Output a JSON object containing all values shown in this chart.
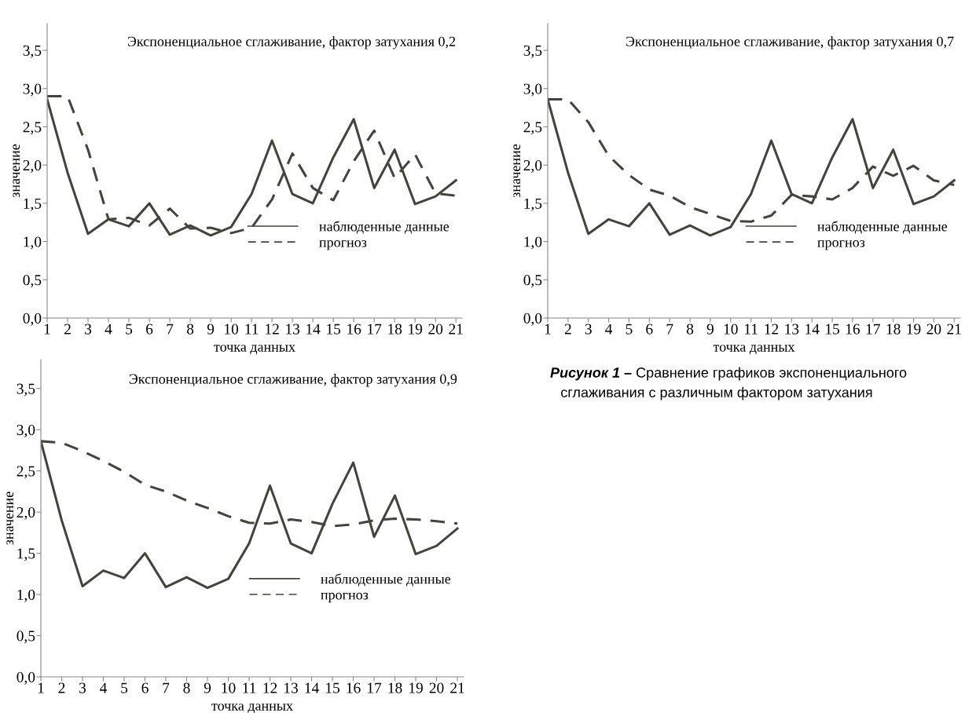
{
  "chart_data": [
    {
      "type": "line",
      "title": "Экспоненциальное сглаживание, фактор затухания 0,2",
      "xlabel": "точка данных",
      "ylabel": "значение",
      "x": [
        1,
        2,
        3,
        4,
        5,
        6,
        7,
        8,
        9,
        10,
        11,
        12,
        13,
        14,
        15,
        16,
        17,
        18,
        19,
        20,
        21
      ],
      "series": [
        {
          "name": "наблюденные данные",
          "color": "#45433b",
          "line_style": "solid",
          "values": [
            2.86,
            1.9,
            1.1,
            1.29,
            1.2,
            1.5,
            1.09,
            1.21,
            1.08,
            1.19,
            1.62,
            2.32,
            1.62,
            1.5,
            2.1,
            2.6,
            1.7,
            2.2,
            1.49,
            1.59,
            1.8
          ]
        },
        {
          "name": "прогноз",
          "color": "#45433b",
          "line_style": "dashed",
          "values": [
            2.9,
            2.9,
            2.2,
            1.29,
            1.31,
            1.21,
            1.43,
            1.17,
            1.18,
            1.11,
            1.18,
            1.55,
            2.15,
            1.7,
            1.54,
            2.05,
            2.45,
            1.83,
            2.14,
            1.63,
            1.6
          ]
        }
      ],
      "xlim": [
        1,
        21.3
      ],
      "xticks": [
        1,
        2,
        3,
        4,
        5,
        6,
        7,
        8,
        9,
        10,
        11,
        12,
        13,
        14,
        15,
        16,
        17,
        18,
        19,
        20,
        21
      ],
      "ylim": [
        0,
        3.85
      ],
      "yticks": [
        {
          "value": 0,
          "label": "0,0"
        },
        {
          "value": 0.5,
          "label": "0,5"
        },
        {
          "value": 1,
          "label": "1,0"
        },
        {
          "value": 1.5,
          "label": "1,5"
        },
        {
          "value": 2,
          "label": "2,0"
        },
        {
          "value": 2.5,
          "label": "2,5"
        },
        {
          "value": 3,
          "label": "3,0"
        },
        {
          "value": 3.5,
          "label": "3,5"
        }
      ],
      "grid": false,
      "legend": "right",
      "marker": "none"
    },
    {
      "type": "line",
      "title": "Экспоненциальное сглаживание, фактор затухания 0,7",
      "xlabel": "точка данных",
      "ylabel": "значение",
      "x": [
        1,
        2,
        3,
        4,
        5,
        6,
        7,
        8,
        9,
        10,
        11,
        12,
        13,
        14,
        15,
        16,
        17,
        18,
        19,
        20,
        21
      ],
      "series": [
        {
          "name": "наблюденные данные",
          "color": "#45433b",
          "line_style": "solid",
          "values": [
            2.86,
            1.9,
            1.1,
            1.29,
            1.2,
            1.5,
            1.09,
            1.21,
            1.08,
            1.19,
            1.62,
            2.32,
            1.62,
            1.5,
            2.1,
            2.6,
            1.7,
            2.2,
            1.49,
            1.59,
            1.8
          ]
        },
        {
          "name": "прогноз",
          "color": "#45433b",
          "line_style": "dashed",
          "values": [
            2.86,
            2.86,
            2.56,
            2.12,
            1.87,
            1.68,
            1.6,
            1.45,
            1.36,
            1.27,
            1.26,
            1.34,
            1.61,
            1.59,
            1.55,
            1.7,
            1.98,
            1.86,
            1.99,
            1.8,
            1.74
          ]
        }
      ],
      "xlim": [
        1,
        21.3
      ],
      "xticks": [
        1,
        2,
        3,
        4,
        5,
        6,
        7,
        8,
        9,
        10,
        11,
        12,
        13,
        14,
        15,
        16,
        17,
        18,
        19,
        20,
        21
      ],
      "ylim": [
        0,
        3.85
      ],
      "yticks": [
        {
          "value": 0,
          "label": "0,0"
        },
        {
          "value": 0.5,
          "label": "0,5"
        },
        {
          "value": 1,
          "label": "1,0"
        },
        {
          "value": 1.5,
          "label": "1,5"
        },
        {
          "value": 2,
          "label": "2,0"
        },
        {
          "value": 2.5,
          "label": "2,5"
        },
        {
          "value": 3,
          "label": "3,0"
        },
        {
          "value": 3.5,
          "label": "3,5"
        }
      ],
      "grid": false,
      "legend": "right",
      "marker": "none"
    },
    {
      "type": "line",
      "title": "Экспоненциальное сглаживание, фактор затухания 0,9",
      "xlabel": "точка данных",
      "ylabel": "значение",
      "x": [
        1,
        2,
        3,
        4,
        5,
        6,
        7,
        8,
        9,
        10,
        11,
        12,
        13,
        14,
        15,
        16,
        17,
        18,
        19,
        20,
        21
      ],
      "series": [
        {
          "name": "наблюденные данные",
          "color": "#45433b",
          "line_style": "solid",
          "values": [
            2.86,
            1.9,
            1.1,
            1.29,
            1.2,
            1.5,
            1.09,
            1.21,
            1.08,
            1.19,
            1.62,
            2.32,
            1.62,
            1.5,
            2.1,
            2.6,
            1.7,
            2.2,
            1.49,
            1.59,
            1.8
          ]
        },
        {
          "name": "прогноз",
          "color": "#45433b",
          "line_style": "dashed",
          "values": [
            2.86,
            2.84,
            2.74,
            2.62,
            2.49,
            2.33,
            2.25,
            2.14,
            2.05,
            1.95,
            1.87,
            1.86,
            1.91,
            1.88,
            1.83,
            1.85,
            1.9,
            1.92,
            1.91,
            1.89,
            1.86
          ]
        }
      ],
      "xlim": [
        1,
        21.3
      ],
      "xticks": [
        1,
        2,
        3,
        4,
        5,
        6,
        7,
        8,
        9,
        10,
        11,
        12,
        13,
        14,
        15,
        16,
        17,
        18,
        19,
        20,
        21
      ],
      "ylim": [
        0,
        3.85
      ],
      "yticks": [
        {
          "value": 0,
          "label": "0,0"
        },
        {
          "value": 0.5,
          "label": "0,5"
        },
        {
          "value": 1,
          "label": "1,0"
        },
        {
          "value": 1.5,
          "label": "1,5"
        },
        {
          "value": 2,
          "label": "2,0"
        },
        {
          "value": 2.5,
          "label": "2,5"
        },
        {
          "value": 3,
          "label": "3,0"
        },
        {
          "value": 3.5,
          "label": "3,5"
        }
      ],
      "grid": false,
      "legend": "right",
      "marker": "none"
    },
    {
      "type": "other",
      "annotations": [
        "Рисунок 1 –",
        "Сравнение графиков экспоненциального",
        "сглаживания с различным фактором затухания"
      ]
    }
  ]
}
